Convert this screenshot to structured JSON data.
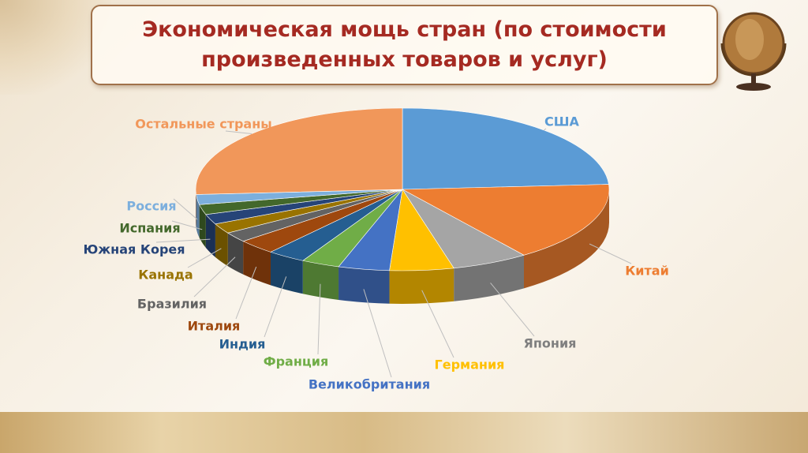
{
  "chart_data": {
    "type": "pie",
    "title": "Экономическая мощь стран (по стоимости произведенных товаров и услуг)",
    "categories": [
      "США",
      "Китай",
      "Япония",
      "Германия",
      "Великобритания",
      "Франция",
      "Индия",
      "Италия",
      "Бразилия",
      "Канада",
      "Южная Корея",
      "Испания",
      "Россия",
      "Остальные страны"
    ],
    "values": [
      24,
      16,
      6,
      5,
      4,
      3,
      3,
      3,
      2,
      2,
      2,
      2,
      2,
      26
    ],
    "colors": [
      "#5b9bd5",
      "#ed7d31",
      "#a5a5a5",
      "#ffc000",
      "#4472c4",
      "#70ad47",
      "#255e91",
      "#9e480e",
      "#636363",
      "#997300",
      "#264478",
      "#43682b",
      "#7cafdd",
      "#f1975a"
    ]
  }
}
